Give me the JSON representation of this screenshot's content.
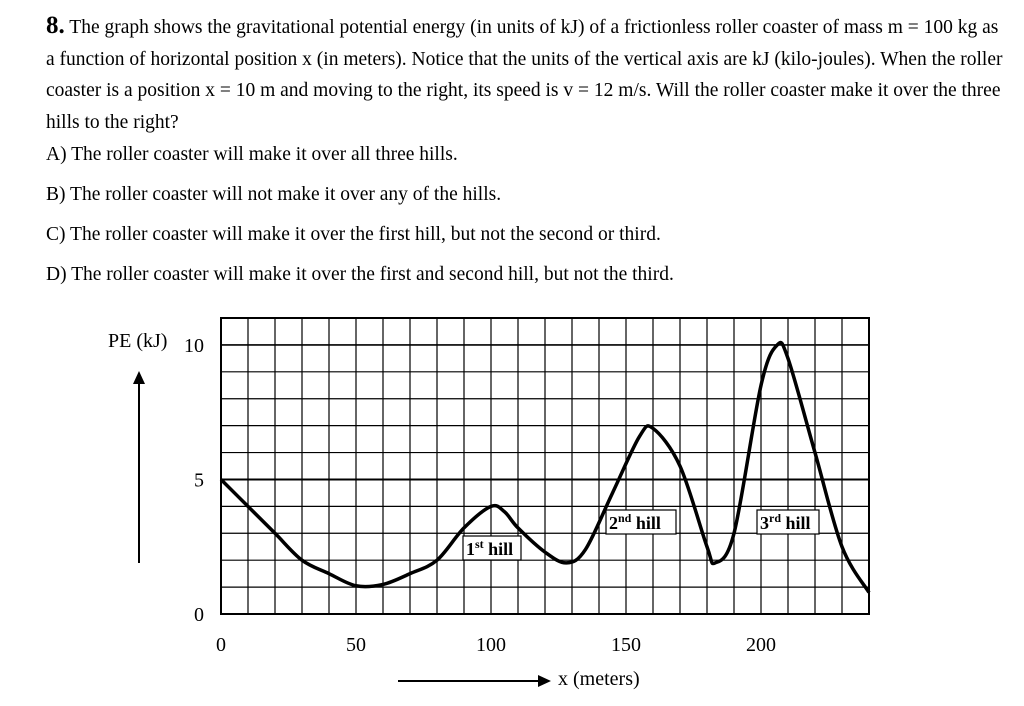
{
  "question": {
    "number": "8.",
    "text": "The graph shows the gravitational potential energy (in units of kJ) of a frictionless roller coaster of mass m = 100 kg as a function of horizontal position x (in meters). Notice that the units of the vertical axis are kJ (kilo-joules). When the roller coaster is a position x = 10 m and moving to the right, its speed is v = 12 m/s. Will the roller coaster make it over the three hills to the right?"
  },
  "choices": [
    {
      "label": "A) ",
      "text": "The roller coaster will make it over all three hills."
    },
    {
      "label": "B) ",
      "text": "The roller coaster will not make it over any of the hills."
    },
    {
      "label": "C) ",
      "text": "The roller coaster will make it over the first hill, but not the second or third."
    },
    {
      "label": "D) ",
      "text": "The roller coaster will make it over the first and second hill, but not the third."
    }
  ],
  "chart_data": {
    "type": "line",
    "ylabel": "PE (kJ)",
    "xlabel": "x (meters)",
    "xlim": [
      0,
      240
    ],
    "ylim": [
      0,
      10
    ],
    "x_ticks": [
      0,
      50,
      100,
      150,
      200
    ],
    "y_ticks": [
      0,
      5,
      10
    ],
    "grid": true,
    "series": [
      {
        "x": [
          0,
          10,
          20,
          30,
          40,
          50,
          60,
          70,
          80,
          90,
          100,
          105,
          110,
          120,
          128,
          135,
          145,
          155,
          160,
          170,
          180,
          183,
          190,
          200,
          206,
          210,
          220,
          230,
          240
        ],
        "y": [
          5,
          4.0,
          3.0,
          2.0,
          1.5,
          1.05,
          1.1,
          1.5,
          2.0,
          3.2,
          4.0,
          3.8,
          3.2,
          2.3,
          1.9,
          2.4,
          4.5,
          6.6,
          6.9,
          5.5,
          2.5,
          1.9,
          3.0,
          8.5,
          10.0,
          9.5,
          6.0,
          2.5,
          0.8
        ]
      }
    ],
    "annotations": [
      {
        "base": "1",
        "sup": "st",
        "text": " hill"
      },
      {
        "base": "2",
        "sup": "nd",
        "text": " hill"
      },
      {
        "base": "3",
        "sup": "rd",
        "text": " hill"
      }
    ]
  }
}
